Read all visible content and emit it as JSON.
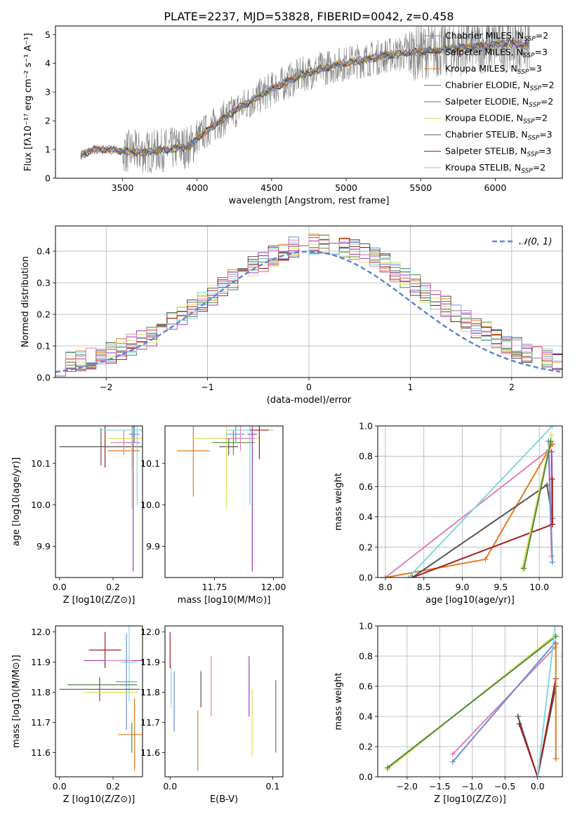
{
  "title": "PLATE=2237, MJD=53828, FIBERID=0042, z=0.458",
  "colors": {
    "Chabrier MILES": "#6b8fd6",
    "Salpeter MILES": "#444444",
    "Kroupa MILES": "#e07b1f",
    "Chabrier ELODIE": "#4f8a3c",
    "Salpeter ELODIE": "#9b39b8",
    "Kroupa ELODIE": "#dede5a",
    "Chabrier STELIB": "#555555",
    "Salpeter STELIB": "#a81c1c",
    "Kroupa STELIB": "#7fd8de",
    "pink": "#e07fb8",
    "data": "#808080"
  },
  "chart_data": [
    {
      "type": "line",
      "xlabel": "wavelength [Angstrom, rest frame]",
      "ylabel_html": "Flux [fλ10⁻¹⁷ erg cm⁻² s⁻¹ A⁻¹]",
      "xlim": [
        3050,
        6450
      ],
      "ylim": [
        0,
        5.3
      ],
      "xticks": [
        3500,
        4000,
        4500,
        5000,
        5500,
        6000
      ],
      "yticks": [
        0,
        1,
        2,
        3,
        4,
        5
      ],
      "grid": false,
      "legend_position": "top-right",
      "continuum": {
        "x": [
          3220,
          3300,
          3400,
          3500,
          3650,
          3800,
          3950,
          4000,
          4100,
          4300,
          4500,
          4700,
          4900,
          5100,
          5300,
          5500,
          5700,
          5900,
          6100,
          6230
        ],
        "y": [
          0.8,
          1.0,
          1.0,
          0.95,
          0.9,
          1.0,
          1.1,
          1.4,
          1.8,
          2.5,
          3.1,
          3.6,
          3.9,
          4.1,
          4.3,
          4.4,
          4.5,
          4.6,
          4.7,
          4.6
        ]
      },
      "legend": [
        {
          "imf": "Chabrier",
          "lib": "MILES",
          "n": "2",
          "color": "#6b8fd6"
        },
        {
          "imf": "Salpeter",
          "lib": "MILES",
          "n": "3",
          "color": "#444444"
        },
        {
          "imf": "Kroupa",
          "lib": "MILES",
          "n": "3",
          "color": "#e07b1f"
        },
        {
          "imf": "Chabrier",
          "lib": "ELODIE",
          "n": "2",
          "color": "#4f8a3c"
        },
        {
          "imf": "Salpeter",
          "lib": "ELODIE",
          "n": "2",
          "color": "#9b39b8"
        },
        {
          "imf": "Kroupa",
          "lib": "ELODIE",
          "n": "2",
          "color": "#dede5a"
        },
        {
          "imf": "Chabrier",
          "lib": "STELIB",
          "n": "3",
          "color": "#555555"
        },
        {
          "imf": "Salpeter",
          "lib": "STELIB",
          "n": "3",
          "color": "#a81c1c"
        },
        {
          "imf": "Kroupa",
          "lib": "STELIB",
          "n": "2",
          "color": "#7fd8de"
        }
      ]
    },
    {
      "type": "line",
      "xlabel": "(data-model)/error",
      "ylabel": "Normed distribution",
      "xlim": [
        -2.5,
        2.5
      ],
      "ylim": [
        0,
        0.48
      ],
      "xticks": [
        -2,
        -1,
        0,
        1,
        2
      ],
      "yticks": [
        0.0,
        0.1,
        0.2,
        0.3,
        0.4
      ],
      "grid": true,
      "legend_label": "𝒩(0, 1)",
      "legend_position": "top-right",
      "hist_bins": 50
    },
    {
      "type": "scatter",
      "xlabel": "Z [log10(Z/Z⊙)]",
      "ylabel": "age  [log10(age/yr)]",
      "xlim": [
        -0.015,
        0.31
      ],
      "ylim": [
        9.825,
        10.19
      ],
      "xticks": [
        0.0,
        0.2
      ],
      "yticks": [
        9.9,
        10.0,
        10.1
      ],
      "points": [
        {
          "c": "Chabrier STELIB",
          "x": 0.155,
          "y": 10.14,
          "xe": 0.155,
          "ye": 0.045
        },
        {
          "c": "Salpeter STELIB",
          "x": 0.17,
          "y": 10.14,
          "xe": 0.0,
          "ye": 0.05
        },
        {
          "c": "Kroupa MILES",
          "x": 0.24,
          "y": 10.13,
          "xe": 0.06,
          "ye": 0.0
        },
        {
          "c": "Chabrier ELODIE",
          "x": 0.27,
          "y": 10.15,
          "xe": 0.03,
          "ye": 0.06
        },
        {
          "c": "Salpeter ELODIE",
          "x": 0.275,
          "y": 10.17,
          "xe": 0.0,
          "ye": 0.33
        },
        {
          "c": "Kroupa ELODIE",
          "x": 0.27,
          "y": 10.16,
          "xe": 0.1,
          "ye": 0.17
        },
        {
          "c": "Chabrier MILES",
          "x": 0.28,
          "y": 10.17,
          "xe": 0.02,
          "ye": 0.02
        },
        {
          "c": "Kroupa STELIB",
          "x": 0.29,
          "y": 10.18,
          "xe": 0.14,
          "ye": 0.18
        },
        {
          "c": "pink",
          "x": 0.24,
          "y": 10.15,
          "xe": 0.05,
          "ye": 0.03
        }
      ]
    },
    {
      "type": "scatter",
      "xlabel": "mass [log10(M/M⊙)]",
      "ylabel": "",
      "xlim": [
        11.54,
        12.04
      ],
      "ylim": [
        9.825,
        10.19
      ],
      "xticks": [
        11.75,
        12.0
      ],
      "yticks": [
        9.9,
        10.0,
        10.1
      ],
      "points": [
        {
          "c": "Kroupa MILES",
          "x": 11.66,
          "y": 10.13,
          "xe": 0.07,
          "ye": 0.11
        },
        {
          "c": "Chabrier STELIB",
          "x": 11.81,
          "y": 10.14,
          "xe": 0.04,
          "ye": 0.02
        },
        {
          "c": "Kroupa ELODIE",
          "x": 11.8,
          "y": 10.16,
          "xe": 0.14,
          "ye": 0.17
        },
        {
          "c": "Chabrier ELODIE",
          "x": 11.83,
          "y": 10.15,
          "xe": 0.09,
          "ye": 0.03
        },
        {
          "c": "Salpeter ELODIE",
          "x": 11.91,
          "y": 10.17,
          "xe": 0.02,
          "ye": 0.33
        },
        {
          "c": "Chabrier MILES",
          "x": 11.84,
          "y": 10.17,
          "xe": 0.04,
          "ye": 0.02
        },
        {
          "c": "Kroupa STELIB",
          "x": 11.9,
          "y": 10.18,
          "xe": 0.1,
          "ye": 0.18
        },
        {
          "c": "Salpeter STELIB",
          "x": 11.94,
          "y": 10.18,
          "xe": 0.04,
          "ye": 0.07
        },
        {
          "c": "pink",
          "x": 11.86,
          "y": 10.16,
          "xe": 0.06,
          "ye": 0.03
        }
      ]
    },
    {
      "type": "line",
      "xlabel": "age  [log10(age/yr)]",
      "ylabel": "mass weight",
      "xlim": [
        7.9,
        10.3
      ],
      "ylim": [
        0,
        1.0
      ],
      "xticks": [
        8.0,
        8.5,
        9.0,
        9.5,
        10.0
      ],
      "yticks": [
        0.0,
        0.2,
        0.4,
        0.6,
        0.8,
        1.0
      ],
      "grid": true,
      "series": [
        {
          "c": "Kroupa MILES",
          "x": [
            8.0,
            9.3,
            10.12,
            10.15,
            10.17
          ],
          "y": [
            0.0,
            0.12,
            0.84,
            0.87,
            0.88
          ]
        },
        {
          "c": "Salpeter STELIB",
          "x": [
            8.35,
            10.17
          ],
          "y": [
            0.0,
            0.35
          ]
        },
        {
          "c": "Chabrier STELIB",
          "x": [
            8.35,
            10.1,
            10.17
          ],
          "y": [
            0.0,
            0.61,
            0.39
          ]
        },
        {
          "c": "pink",
          "x": [
            8.0,
            10.12,
            10.16
          ],
          "y": [
            0.0,
            0.84,
            0.14
          ]
        },
        {
          "c": "Kroupa STELIB",
          "x": [
            8.3,
            10.17
          ],
          "y": [
            0.0,
            1.0
          ]
        },
        {
          "c": "Chabrier MILES",
          "x": [
            10.12,
            10.17
          ],
          "y": [
            0.9,
            0.1
          ]
        },
        {
          "c": "Kroupa ELODIE",
          "x": [
            9.78,
            10.16
          ],
          "y": [
            0.06,
            0.94
          ]
        },
        {
          "c": "Chabrier ELODIE",
          "x": [
            9.8,
            10.15
          ],
          "y": [
            0.06,
            0.9
          ]
        },
        {
          "c": "Salpeter ELODIE",
          "x": [
            10.16,
            10.17
          ],
          "y": [
            0.83,
            0.35
          ]
        },
        {
          "c": "Salpeter STELIB",
          "x": [
            10.17,
            10.17
          ],
          "y": [
            0.35,
            0.65
          ]
        }
      ]
    },
    {
      "type": "scatter",
      "xlabel": "Z [log10(Z/Z⊙)]",
      "ylabel": "mass [log10(M/M⊙)]",
      "xlim": [
        -0.015,
        0.31
      ],
      "ylim": [
        11.52,
        12.02
      ],
      "xticks": [
        0.0,
        0.2
      ],
      "yticks": [
        11.6,
        11.7,
        11.8,
        11.9,
        12.0
      ],
      "points": [
        {
          "c": "Salpeter STELIB",
          "x": 0.17,
          "y": 11.94,
          "xe": 0.06,
          "ye": 0.06
        },
        {
          "c": "Salpeter ELODIE",
          "x": 0.2,
          "y": 11.905,
          "xe": 0.11,
          "ye": 0.0
        },
        {
          "c": "Kroupa STELIB",
          "x": 0.26,
          "y": 11.9,
          "xe": 0.03,
          "ye": 0.13
        },
        {
          "c": "pink",
          "x": 0.22,
          "y": 11.905,
          "xe": 0.05,
          "ye": 0.0
        },
        {
          "c": "Chabrier MILES",
          "x": 0.25,
          "y": 11.835,
          "xe": 0.04,
          "ye": 0.16
        },
        {
          "c": "Chabrier ELODIE",
          "x": 0.16,
          "y": 11.825,
          "xe": 0.13,
          "ye": 0.0
        },
        {
          "c": "Chabrier STELIB",
          "x": 0.15,
          "y": 11.81,
          "xe": 0.15,
          "ye": 0.04
        },
        {
          "c": "Kroupa ELODIE",
          "x": 0.19,
          "y": 11.8,
          "xe": 0.1,
          "ye": 0.0
        },
        {
          "c": "Kroupa MILES",
          "x": 0.28,
          "y": 11.66,
          "xe": 0.06,
          "ye": 0.12
        },
        {
          "c": "Chabrier ELODIE",
          "x": 0.27,
          "y": 11.65,
          "xe": 0.0,
          "ye": 0.05
        }
      ]
    },
    {
      "type": "scatter",
      "xlabel": "E(B-V)",
      "ylabel": "",
      "xlim": [
        -0.005,
        0.11
      ],
      "ylim": [
        11.52,
        12.02
      ],
      "xticks": [
        0.0,
        0.1
      ],
      "yticks": [
        11.6,
        11.7,
        11.8,
        11.9,
        12.0
      ],
      "points": [
        {
          "c": "Salpeter STELIB",
          "x": 0.0,
          "y": 11.94,
          "xe": 0.0,
          "ye": 0.06
        },
        {
          "c": "Kroupa STELIB",
          "x": 0.001,
          "y": 11.82,
          "xe": 0.0,
          "ye": 0.07
        },
        {
          "c": "Chabrier MILES",
          "x": 0.004,
          "y": 11.77,
          "xe": 0.0,
          "ye": 0.1
        },
        {
          "c": "Kroupa MILES",
          "x": 0.027,
          "y": 11.64,
          "xe": 0.0,
          "ye": 0.1
        },
        {
          "c": "Chabrier STELIB",
          "x": 0.03,
          "y": 11.81,
          "xe": 0.0,
          "ye": 0.06
        },
        {
          "c": "pink",
          "x": 0.04,
          "y": 11.82,
          "xe": 0.0,
          "ye": 0.1
        },
        {
          "c": "Salpeter ELODIE",
          "x": 0.077,
          "y": 11.82,
          "xe": 0.0,
          "ye": 0.1
        },
        {
          "c": "Kroupa ELODIE",
          "x": 0.08,
          "y": 11.7,
          "xe": 0.0,
          "ye": 0.11
        },
        {
          "c": "Chabrier ELODIE",
          "x": 0.103,
          "y": 11.72,
          "xe": 0.0,
          "ye": 0.12
        }
      ]
    },
    {
      "type": "line",
      "xlabel": "Z [log10(Z/Z⊙)]",
      "ylabel": "mass weight",
      "xlim": [
        -2.45,
        0.38
      ],
      "ylim": [
        0,
        1.0
      ],
      "xticks": [
        -2.0,
        -1.5,
        -1.0,
        -0.5,
        0.0
      ],
      "yticks": [
        0.0,
        0.2,
        0.4,
        0.6,
        0.8,
        1.0
      ],
      "grid": true,
      "series": [
        {
          "c": "Kroupa ELODIE",
          "x": [
            -2.3,
            0.27
          ],
          "y": [
            0.05,
            0.94
          ]
        },
        {
          "c": "Chabrier ELODIE",
          "x": [
            -2.3,
            0.28
          ],
          "y": [
            0.06,
            0.93
          ]
        },
        {
          "c": "pink",
          "x": [
            -1.3,
            0.27
          ],
          "y": [
            0.15,
            0.86
          ]
        },
        {
          "c": "Chabrier MILES",
          "x": [
            -1.3,
            0.27
          ],
          "y": [
            0.1,
            0.89
          ]
        },
        {
          "c": "Chabrier STELIB",
          "x": [
            -0.3,
            0.0,
            0.28
          ],
          "y": [
            0.4,
            0.0,
            0.6
          ]
        },
        {
          "c": "Salpeter STELIB",
          "x": [
            -0.28,
            0.0,
            0.28
          ],
          "y": [
            0.35,
            0.0,
            0.65
          ]
        },
        {
          "c": "Kroupa STELIB",
          "x": [
            0.0,
            0.27
          ],
          "y": [
            0.0,
            1.0
          ]
        },
        {
          "c": "Kroupa MILES",
          "x": [
            0.28,
            0.28
          ],
          "y": [
            0.12,
            0.88
          ]
        }
      ]
    }
  ]
}
